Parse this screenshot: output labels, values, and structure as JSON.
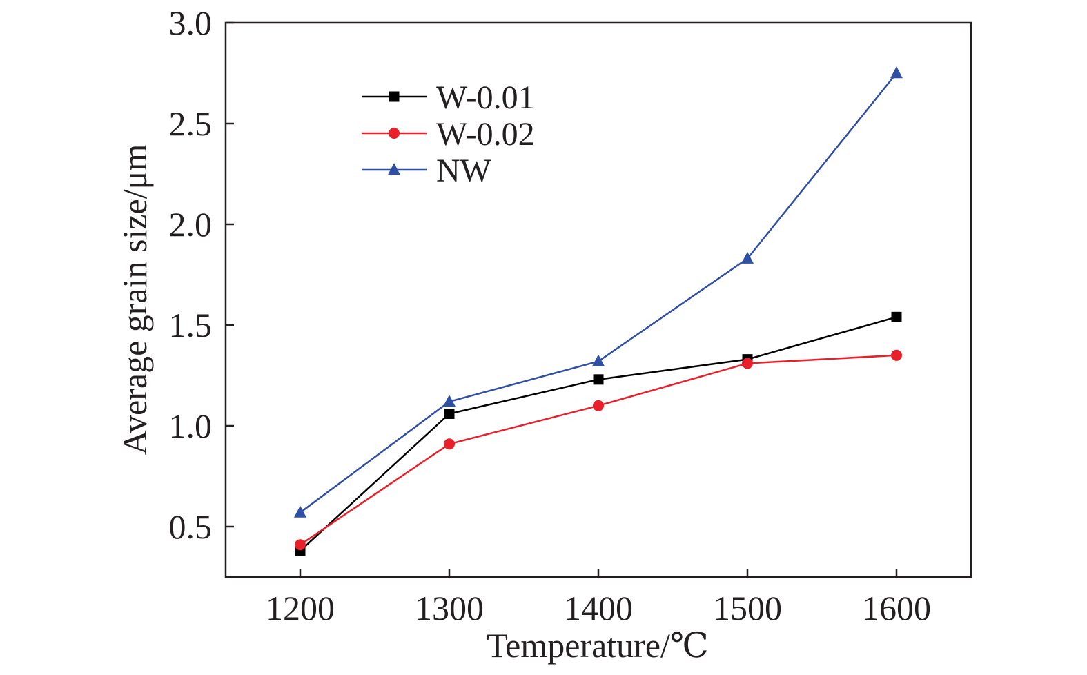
{
  "chart_data": {
    "type": "line",
    "title": "",
    "xlabel": "Temperature/℃",
    "ylabel": "Average grain size/μm",
    "x": [
      1200,
      1300,
      1400,
      1500,
      1600
    ],
    "xticks": [
      "1200",
      "1300",
      "1400",
      "1500",
      "1600"
    ],
    "xlim": [
      1150,
      1650
    ],
    "ylim": [
      0.25,
      3.0
    ],
    "yticks": [
      "0.5",
      "1.0",
      "1.5",
      "2.0",
      "2.5",
      "3.0"
    ],
    "grid": false,
    "legend_position": "top-left",
    "series": [
      {
        "name": "W-0.01",
        "color": "#000000",
        "marker": "square",
        "values": [
          0.38,
          1.06,
          1.23,
          1.33,
          1.54
        ]
      },
      {
        "name": "W-0.02",
        "color": "#e8202a",
        "marker": "circle",
        "values": [
          0.41,
          0.91,
          1.1,
          1.31,
          1.35
        ]
      },
      {
        "name": "NW",
        "color": "#2e4fa3",
        "marker": "triangle",
        "values": [
          0.57,
          1.12,
          1.32,
          1.83,
          2.75
        ]
      }
    ]
  }
}
